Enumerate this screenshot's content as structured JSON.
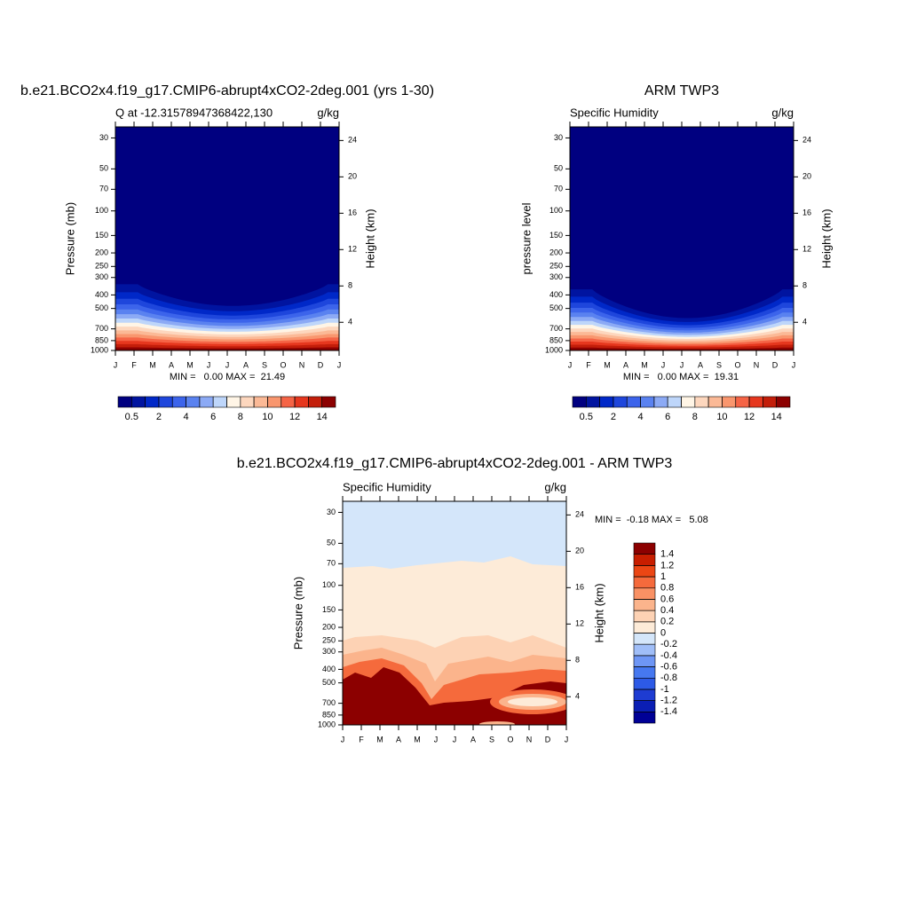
{
  "chart_data": [
    {
      "type": "contour",
      "title": "b.e21.BCO2x4.f19_g17.CMIP6-abrupt4xCO2-2deg.001 (yrs 1-30)",
      "left_string": "Q at -12.31578947368422,130",
      "right_string": "g/kg",
      "ylabel": "Pressure (mb)",
      "y2label": "Height (km)",
      "stats": "MIN =   0.00 MAX =  21.49",
      "categories": [
        "J",
        "F",
        "M",
        "A",
        "M",
        "J",
        "J",
        "A",
        "S",
        "O",
        "N",
        "D",
        "J"
      ],
      "yscale": "log",
      "ylim": [
        1000,
        25
      ],
      "yticks": [
        30,
        50,
        70,
        100,
        150,
        200,
        250,
        300,
        400,
        500,
        700,
        850,
        1000
      ],
      "y2lim": [
        0.9,
        25.5
      ],
      "y2ticks": [
        4,
        8,
        12,
        16,
        20,
        24
      ],
      "colorbar": {
        "orientation": "horizontal",
        "label_stride": 2,
        "levels": [
          0.5,
          1,
          2,
          3,
          4,
          5,
          6,
          7,
          8,
          9,
          10,
          11,
          12,
          13,
          14
        ],
        "colors": [
          "#000080",
          "#0014a0",
          "#0028c8",
          "#1e46dc",
          "#3c64eb",
          "#5a82f0",
          "#8caaf5",
          "#bed6fa",
          "#fff5e6",
          "#fdd7be",
          "#fbb996",
          "#f9966e",
          "#f56446",
          "#e6371e",
          "#c31e0a",
          "#8c0000"
        ]
      }
    },
    {
      "type": "contour",
      "title": "ARM TWP3",
      "left_string": "Specific Humidity",
      "right_string": "g/kg",
      "ylabel": "pressure level",
      "y2label": "Height (km)",
      "stats": "MIN =   0.00 MAX =  19.31",
      "categories": [
        "J",
        "F",
        "M",
        "A",
        "M",
        "J",
        "J",
        "A",
        "S",
        "O",
        "N",
        "D",
        "J"
      ],
      "yscale": "log",
      "ylim": [
        1000,
        25
      ],
      "yticks": [
        30,
        50,
        70,
        100,
        150,
        200,
        250,
        300,
        400,
        500,
        700,
        850,
        1000
      ],
      "y2lim": [
        0.9,
        25.5
      ],
      "y2ticks": [
        4,
        8,
        12,
        16,
        20,
        24
      ],
      "colorbar": {
        "orientation": "horizontal",
        "label_stride": 2,
        "levels": [
          0.5,
          1,
          2,
          3,
          4,
          5,
          6,
          7,
          8,
          9,
          10,
          11,
          12,
          13,
          14
        ],
        "colors": [
          "#000080",
          "#0014a0",
          "#0028c8",
          "#1e46dc",
          "#3c64eb",
          "#5a82f0",
          "#8caaf5",
          "#bed6fa",
          "#fff5e6",
          "#fdd7be",
          "#fbb996",
          "#f9966e",
          "#f56446",
          "#e6371e",
          "#c31e0a",
          "#8c0000"
        ]
      }
    },
    {
      "type": "contour",
      "title": "b.e21.BCO2x4.f19_g17.CMIP6-abrupt4xCO2-2deg.001 - ARM TWP3",
      "left_string": "Specific Humidity",
      "right_string": "g/kg",
      "ylabel": "Pressure (mb)",
      "y2label": "Height (km)",
      "stats": "MIN =  -0.18 MAX =   5.08",
      "categories": [
        "J",
        "F",
        "M",
        "A",
        "M",
        "J",
        "J",
        "A",
        "S",
        "O",
        "N",
        "D",
        "J"
      ],
      "yscale": "log",
      "ylim": [
        1000,
        25
      ],
      "yticks": [
        30,
        50,
        70,
        100,
        150,
        200,
        250,
        300,
        400,
        500,
        700,
        850,
        1000
      ],
      "y2lim": [
        0.9,
        25.5
      ],
      "y2ticks": [
        4,
        8,
        12,
        16,
        20,
        24
      ],
      "colorbar": {
        "orientation": "vertical",
        "label_stride": 1,
        "levels": [
          -1.4,
          -1.2,
          -1,
          -0.8,
          -0.6,
          -0.4,
          -0.2,
          0,
          0.2,
          0.4,
          0.6,
          0.8,
          1,
          1.2,
          1.4
        ],
        "colors": [
          "#000096",
          "#0a1eb4",
          "#1e3cd2",
          "#2d5ae6",
          "#4678f0",
          "#6e96f5",
          "#a0bef8",
          "#d4e6fa",
          "#fdebd8",
          "#fdd2b4",
          "#fbb48c",
          "#f99164",
          "#f56a3c",
          "#eb4614",
          "#c81e00",
          "#8c0000"
        ]
      }
    }
  ]
}
